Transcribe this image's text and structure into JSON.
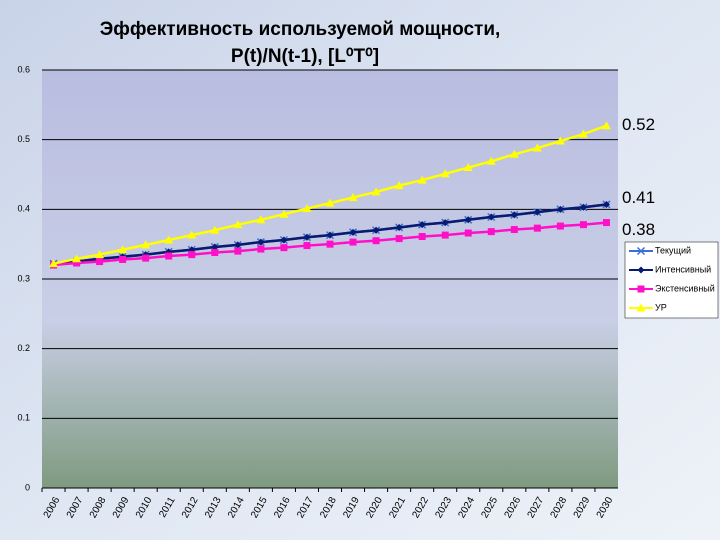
{
  "chart_data": {
    "type": "line",
    "title": [
      "Эффективность используемой мощности,",
      "P(t)/N(t-1), [L⁰T⁰]"
    ],
    "categories": [
      "2006",
      "2007",
      "2008",
      "2009",
      "2010",
      "2011",
      "2012",
      "2013",
      "2014",
      "2015",
      "2016",
      "2017",
      "2018",
      "2019",
      "2020",
      "2021",
      "2022",
      "2023",
      "2024",
      "2025",
      "2026",
      "2027",
      "2028",
      "2029",
      "2030"
    ],
    "series": [
      {
        "name": "Текущий",
        "color": "#3a6fd8",
        "marker": "x",
        "values": [
          0.322,
          0.325,
          0.329,
          0.332,
          0.335,
          0.339,
          0.342,
          0.346,
          0.349,
          0.353,
          0.356,
          0.36,
          0.363,
          0.367,
          0.37,
          0.374,
          0.378,
          0.381,
          0.385,
          0.389,
          0.392,
          0.396,
          0.4,
          0.403,
          0.407
        ]
      },
      {
        "name": "Интенсивный",
        "color": "#0a1a6e",
        "marker": "diamond",
        "values": [
          0.322,
          0.325,
          0.329,
          0.332,
          0.335,
          0.339,
          0.342,
          0.346,
          0.349,
          0.353,
          0.356,
          0.36,
          0.363,
          0.367,
          0.37,
          0.374,
          0.378,
          0.381,
          0.385,
          0.389,
          0.392,
          0.396,
          0.4,
          0.403,
          0.407
        ]
      },
      {
        "name": "Экстенсивный",
        "color": "#ff10c8",
        "marker": "square",
        "values": [
          0.32,
          0.323,
          0.325,
          0.328,
          0.33,
          0.333,
          0.335,
          0.338,
          0.34,
          0.343,
          0.345,
          0.348,
          0.35,
          0.353,
          0.355,
          0.358,
          0.361,
          0.363,
          0.366,
          0.368,
          0.371,
          0.373,
          0.376,
          0.378,
          0.381
        ]
      },
      {
        "name": "УР",
        "color": "#ffff00",
        "marker": "triangle",
        "values": [
          0.322,
          0.329,
          0.335,
          0.342,
          0.349,
          0.356,
          0.363,
          0.37,
          0.378,
          0.385,
          0.393,
          0.401,
          0.409,
          0.417,
          0.425,
          0.434,
          0.442,
          0.451,
          0.46,
          0.469,
          0.479,
          0.488,
          0.498,
          0.508,
          0.52
        ]
      }
    ],
    "annotations": [
      "0.52",
      "0.41",
      "0.38"
    ],
    "ylim": [
      0,
      0.6
    ],
    "yticks": [
      0,
      0.1,
      0.2,
      0.3,
      0.4,
      0.5,
      0.6
    ],
    "grid": true,
    "legend": "right"
  }
}
